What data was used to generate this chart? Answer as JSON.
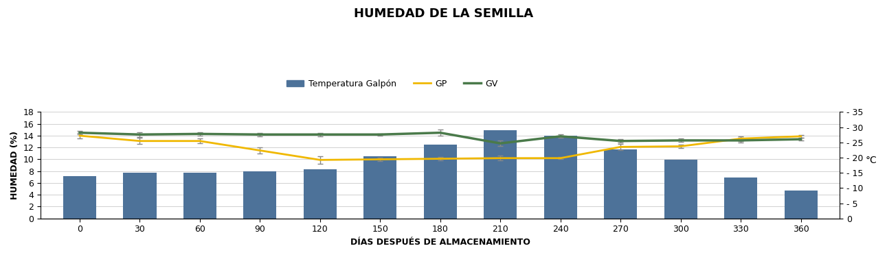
{
  "title": "HUMEDAD DE LA SEMILLA",
  "xlabel": "DÍAS DESPUÉS DE ALMACENAMIENTO",
  "ylabel_left": "HUMEDAD (%)",
  "ylabel_right": "°C",
  "days": [
    0,
    30,
    60,
    90,
    120,
    150,
    180,
    210,
    240,
    270,
    300,
    330,
    360
  ],
  "bar_values": [
    7.2,
    7.7,
    7.7,
    8.0,
    8.3,
    10.5,
    12.5,
    14.9,
    14.0,
    11.7,
    9.9,
    6.9,
    4.7
  ],
  "bar_color": "#4d7299",
  "gp_values": [
    14.0,
    13.1,
    13.1,
    11.5,
    9.9,
    10.0,
    10.1,
    10.2,
    10.2,
    12.1,
    12.2,
    13.5,
    13.9
  ],
  "gv_values": [
    14.5,
    14.2,
    14.3,
    14.2,
    14.2,
    14.2,
    14.5,
    12.7,
    13.9,
    13.1,
    13.2,
    13.2,
    13.4
  ],
  "gp_errors": [
    0.5,
    0.5,
    0.4,
    0.5,
    0.6,
    0.3,
    0.3,
    0.4,
    0.2,
    0.5,
    0.3,
    0.4,
    0.2
  ],
  "gv_errors": [
    0.3,
    0.4,
    0.3,
    0.3,
    0.3,
    0.2,
    0.5,
    0.5,
    0.3,
    0.3,
    0.3,
    0.4,
    0.2
  ],
  "gp_color": "#f0b800",
  "gv_color": "#4a7a4a",
  "error_color": "#888888",
  "ylim_left": [
    0,
    18
  ],
  "ylim_right": [
    0,
    35
  ],
  "yticks_left": [
    0,
    2,
    4,
    6,
    8,
    10,
    12,
    14,
    16,
    18
  ],
  "yticks_right": [
    0,
    5,
    10,
    15,
    20,
    25,
    30,
    35
  ],
  "ytick_right_labels": [
    "0",
    "- 5",
    "- 10",
    "- 15",
    "- 20",
    "- 25",
    "- 30",
    "- 35"
  ],
  "background_color": "#ffffff",
  "grid_color": "#d0d0d0"
}
